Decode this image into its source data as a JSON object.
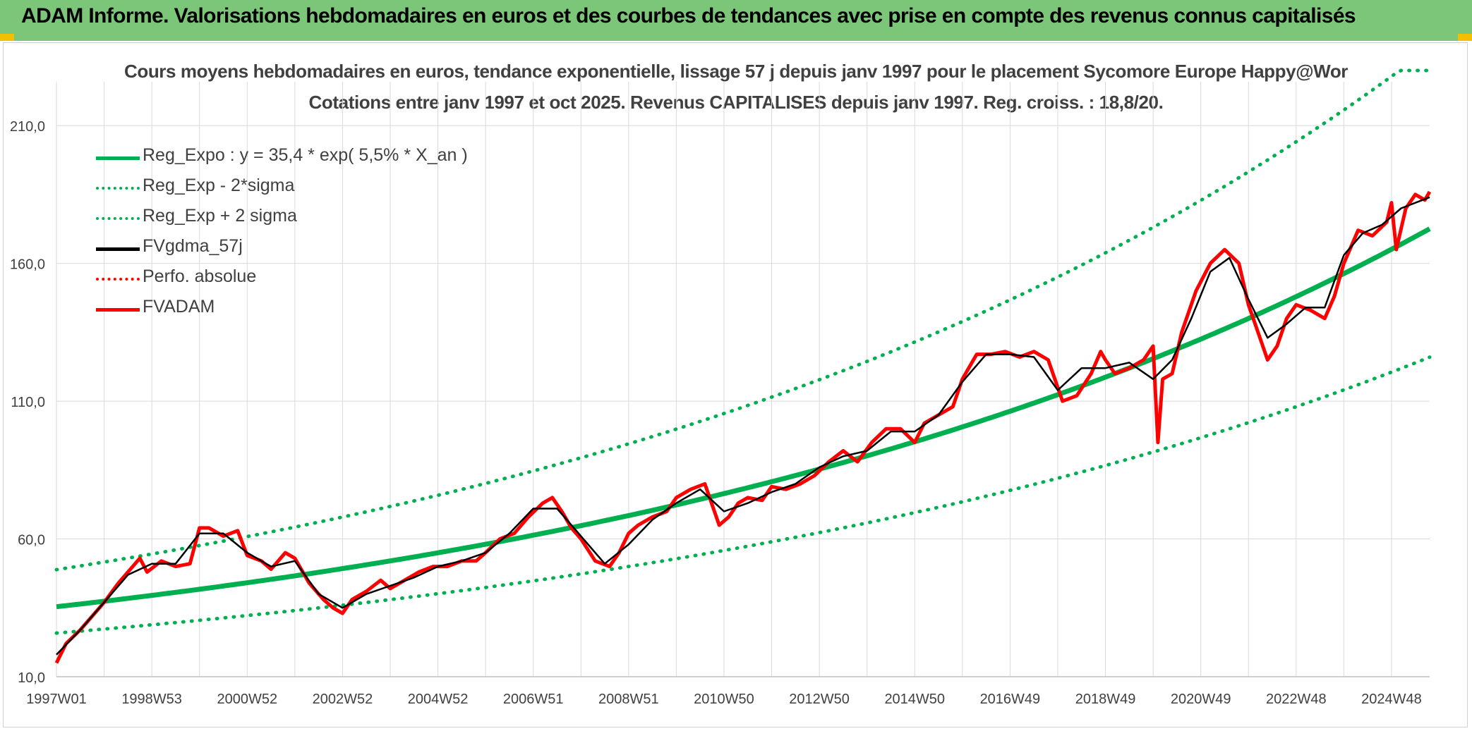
{
  "banner": {
    "title": "ADAM Informe. Valorisations hebdomadaires en euros et des courbes de tendances avec prise en compte des revenus connus capitalisés"
  },
  "colors": {
    "banner": "#7cc67a",
    "trend": "#00b050",
    "price": "#ff0000",
    "smooth": "#000000",
    "grid": "#d9d9d9",
    "text": "#404040"
  },
  "chart_data": {
    "type": "line",
    "title": "Cours moyens hebdomadaires en euros, tendance exponentielle, lissage 57 j depuis janv 1997 pour le placement Sycomore Europe Happy@Wor",
    "subtitle": "Cotations entre janv 1997 et oct 2025. Revenus CAPITALISES depuis janv 1997. Reg. croiss. : 18,8/20.",
    "xlabel": "",
    "ylabel": "",
    "xlim": [
      1997.0,
      2025.8
    ],
    "ylim": [
      10,
      230
    ],
    "y_ticks": [
      "10,0",
      "60,0",
      "110,0",
      "160,0",
      "210,0"
    ],
    "y_tick_values": [
      10,
      60,
      110,
      160,
      210
    ],
    "x_ticks": [
      "1997W01",
      "1998W53",
      "2000W52",
      "2002W52",
      "2004W52",
      "2006W51",
      "2008W51",
      "2010W50",
      "2012W50",
      "2014W50",
      "2016W49",
      "2018W49",
      "2020W49",
      "2022W48",
      "2024W48"
    ],
    "x_tick_values": [
      1997.0,
      1999.0,
      2001.0,
      2003.0,
      2005.0,
      2007.0,
      2009.0,
      2011.0,
      2013.0,
      2015.0,
      2017.0,
      2019.0,
      2021.0,
      2023.0,
      2025.0
    ],
    "legend": [
      {
        "label": "Reg_Expo : y = 35,4 * exp( 5,5% *  X_an )",
        "style": "solid-green"
      },
      {
        "label": "Reg_Exp - 2*sigma",
        "style": "dotted-green"
      },
      {
        "label": "Reg_Exp + 2 sigma",
        "style": "dotted-green"
      },
      {
        "label": "FVgdma_57j",
        "style": "solid-black"
      },
      {
        "label": "Perfo. absolue",
        "style": "dotted-red"
      },
      {
        "label": "FVADAM",
        "style": "solid-red"
      }
    ],
    "trend": {
      "a": 35.4,
      "rate": 0.055,
      "lower_factor": 0.73,
      "upper_factor": 1.38
    },
    "series": [
      {
        "name": "FVADAM",
        "x": [
          1997.0,
          1997.2,
          1997.5,
          1997.8,
          1998.0,
          1998.3,
          1998.6,
          1998.75,
          1998.9,
          1999.2,
          1999.5,
          1999.8,
          2000.0,
          2000.2,
          2000.5,
          2000.8,
          2001.0,
          2001.3,
          2001.5,
          2001.8,
          2002.0,
          2002.3,
          2002.6,
          2002.8,
          2003.0,
          2003.2,
          2003.5,
          2003.8,
          2004.0,
          2004.3,
          2004.6,
          2004.9,
          2005.2,
          2005.5,
          2005.8,
          2006.0,
          2006.3,
          2006.6,
          2006.9,
          2007.2,
          2007.4,
          2007.6,
          2007.8,
          2008.0,
          2008.3,
          2008.6,
          2008.8,
          2009.0,
          2009.2,
          2009.5,
          2009.8,
          2010.0,
          2010.3,
          2010.6,
          2010.9,
          2011.1,
          2011.3,
          2011.5,
          2011.8,
          2012.0,
          2012.3,
          2012.6,
          2012.9,
          2013.2,
          2013.5,
          2013.8,
          2014.1,
          2014.4,
          2014.7,
          2015.0,
          2015.2,
          2015.5,
          2015.8,
          2016.0,
          2016.3,
          2016.6,
          2016.9,
          2017.2,
          2017.5,
          2017.8,
          2018.1,
          2018.4,
          2018.7,
          2018.9,
          2019.0,
          2019.2,
          2019.5,
          2019.8,
          2020.0,
          2020.1,
          2020.2,
          2020.4,
          2020.6,
          2020.9,
          2021.2,
          2021.5,
          2021.8,
          2022.0,
          2022.2,
          2022.4,
          2022.6,
          2022.8,
          2023.0,
          2023.3,
          2023.6,
          2023.8,
          2024.0,
          2024.3,
          2024.6,
          2024.9,
          2025.0,
          2025.1,
          2025.3,
          2025.5,
          2025.7,
          2025.8
        ],
        "values": [
          15,
          22,
          27,
          33,
          37,
          44,
          50,
          53,
          48,
          52,
          50,
          51,
          64,
          64,
          61,
          63,
          54,
          52,
          49,
          55,
          53,
          44,
          38,
          35,
          33,
          38,
          41,
          45,
          42,
          45,
          48,
          50,
          50,
          52,
          52,
          55,
          60,
          62,
          68,
          73,
          75,
          70,
          64,
          60,
          52,
          50,
          55,
          62,
          65,
          68,
          70,
          75,
          78,
          80,
          65,
          68,
          73,
          75,
          74,
          79,
          78,
          80,
          83,
          88,
          92,
          88,
          95,
          100,
          100,
          95,
          102,
          105,
          108,
          118,
          127,
          127,
          128,
          126,
          128,
          125,
          110,
          112,
          120,
          128,
          125,
          120,
          122,
          125,
          130,
          95,
          118,
          120,
          135,
          150,
          160,
          165,
          160,
          145,
          135,
          125,
          130,
          140,
          145,
          143,
          140,
          148,
          160,
          172,
          170,
          175,
          182,
          165,
          180,
          185,
          183,
          186
        ]
      },
      {
        "name": "FVgdma_57j",
        "x": [
          1997.0,
          1997.5,
          1998.0,
          1998.5,
          1999.0,
          1999.5,
          2000.0,
          2000.5,
          2001.0,
          2001.5,
          2002.0,
          2002.5,
          2003.0,
          2003.5,
          2004.0,
          2004.5,
          2005.0,
          2005.5,
          2006.0,
          2006.5,
          2007.0,
          2007.5,
          2008.0,
          2008.5,
          2009.0,
          2009.5,
          2010.0,
          2010.5,
          2011.0,
          2011.5,
          2012.0,
          2012.5,
          2013.0,
          2013.5,
          2014.0,
          2014.5,
          2015.0,
          2015.5,
          2016.0,
          2016.5,
          2017.0,
          2017.5,
          2018.0,
          2018.5,
          2019.0,
          2019.5,
          2020.0,
          2020.4,
          2020.8,
          2021.2,
          2021.6,
          2022.0,
          2022.4,
          2022.8,
          2023.2,
          2023.6,
          2024.0,
          2024.4,
          2024.8,
          2025.2,
          2025.8
        ],
        "values": [
          18,
          27,
          37,
          47,
          51,
          51,
          62,
          62,
          55,
          50,
          52,
          40,
          35,
          40,
          43,
          46,
          50,
          52,
          55,
          62,
          71,
          71,
          61,
          51,
          58,
          67,
          73,
          78,
          70,
          73,
          77,
          80,
          86,
          90,
          92,
          99,
          99,
          105,
          117,
          127,
          127,
          126,
          114,
          122,
          122,
          124,
          118,
          125,
          140,
          157,
          162,
          147,
          133,
          138,
          144,
          144,
          163,
          171,
          174,
          180,
          184
        ]
      }
    ]
  }
}
